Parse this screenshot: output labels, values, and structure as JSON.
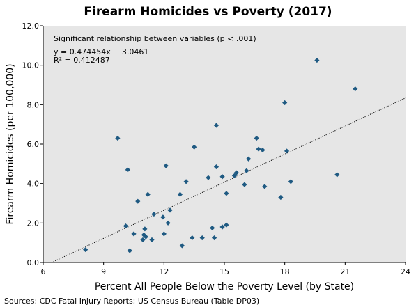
{
  "chart_data": {
    "type": "scatter",
    "title": "Firearm Homicides vs Poverty (2017)",
    "xlabel": "Percent All People Below the Poverty Level (by State)",
    "ylabel": "Firearm Homicides (per 100,000)",
    "xlim": [
      6,
      24
    ],
    "ylim": [
      0,
      12
    ],
    "xticks": [
      6,
      9,
      12,
      15,
      18,
      21,
      24
    ],
    "yticks": [
      0,
      2,
      4,
      6,
      8,
      10,
      12
    ],
    "xtick_labels": [
      "6",
      "9",
      "12",
      "15",
      "18",
      "21",
      "24"
    ],
    "ytick_labels": [
      "0.0",
      "2.0",
      "4.0",
      "6.0",
      "8.0",
      "10.0",
      "12.0"
    ],
    "plot_background": "#e6e6e6",
    "marker_color": "#1f5a82",
    "grid": false,
    "annotations": {
      "significance": "Significant relationship between variables (p < .001)",
      "equation": "y = 0.474454x − 3.0461",
      "r_squared": "R² = 0.412487"
    },
    "trendline": {
      "slope": 0.474454,
      "intercept": -3.0461,
      "style": "dotted"
    },
    "source": "Sources: CDC Fatal Injury Reports; US Census Bureau (Table DP03)",
    "points": [
      {
        "x": 8.1,
        "y": 0.65
      },
      {
        "x": 9.7,
        "y": 6.3
      },
      {
        "x": 10.1,
        "y": 1.85
      },
      {
        "x": 10.2,
        "y": 4.7
      },
      {
        "x": 10.3,
        "y": 0.6
      },
      {
        "x": 10.5,
        "y": 1.45
      },
      {
        "x": 10.7,
        "y": 3.1
      },
      {
        "x": 10.95,
        "y": 1.15
      },
      {
        "x": 11.0,
        "y": 1.4
      },
      {
        "x": 11.05,
        "y": 1.7
      },
      {
        "x": 11.1,
        "y": 1.3
      },
      {
        "x": 11.2,
        "y": 3.45
      },
      {
        "x": 11.4,
        "y": 1.15
      },
      {
        "x": 11.5,
        "y": 2.45
      },
      {
        "x": 11.95,
        "y": 2.3
      },
      {
        "x": 12.0,
        "y": 1.45
      },
      {
        "x": 12.1,
        "y": 4.9
      },
      {
        "x": 12.2,
        "y": 2.0
      },
      {
        "x": 12.3,
        "y": 2.65
      },
      {
        "x": 12.8,
        "y": 3.45
      },
      {
        "x": 12.9,
        "y": 0.85
      },
      {
        "x": 13.1,
        "y": 4.1
      },
      {
        "x": 13.4,
        "y": 1.25
      },
      {
        "x": 13.5,
        "y": 5.85
      },
      {
        "x": 13.9,
        "y": 1.25
      },
      {
        "x": 14.2,
        "y": 4.3
      },
      {
        "x": 14.4,
        "y": 1.75
      },
      {
        "x": 14.5,
        "y": 1.25
      },
      {
        "x": 14.6,
        "y": 4.85
      },
      {
        "x": 14.6,
        "y": 6.95
      },
      {
        "x": 14.9,
        "y": 1.8
      },
      {
        "x": 14.9,
        "y": 4.35
      },
      {
        "x": 15.1,
        "y": 1.9
      },
      {
        "x": 15.1,
        "y": 3.5
      },
      {
        "x": 15.5,
        "y": 4.4
      },
      {
        "x": 15.6,
        "y": 4.55
      },
      {
        "x": 16.0,
        "y": 3.95
      },
      {
        "x": 16.1,
        "y": 4.65
      },
      {
        "x": 16.2,
        "y": 5.25
      },
      {
        "x": 16.6,
        "y": 6.3
      },
      {
        "x": 16.7,
        "y": 5.75
      },
      {
        "x": 16.9,
        "y": 5.7
      },
      {
        "x": 17.0,
        "y": 3.85
      },
      {
        "x": 17.8,
        "y": 3.3
      },
      {
        "x": 18.0,
        "y": 8.1
      },
      {
        "x": 18.1,
        "y": 5.65
      },
      {
        "x": 18.3,
        "y": 4.1
      },
      {
        "x": 19.6,
        "y": 10.25
      },
      {
        "x": 20.6,
        "y": 4.45
      },
      {
        "x": 21.5,
        "y": 8.8
      }
    ]
  }
}
